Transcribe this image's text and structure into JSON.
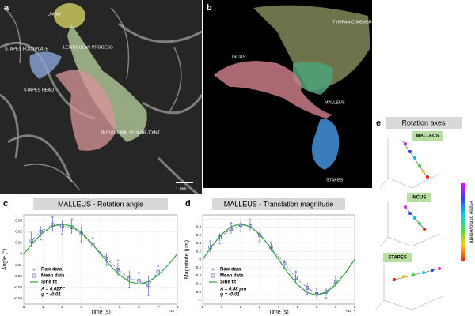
{
  "panel_a": {
    "letter": "a",
    "labels": [
      "UMBO",
      "STAPES FOOTPLATE",
      "LENTICULAR PROCESS",
      "STAPES HEAD",
      "INCUDO-MALLEOLAR JOINT"
    ],
    "scale_bar": "1 mm"
  },
  "panel_b": {
    "letter": "b",
    "labels": [
      "TYMPANIC MEMBRANE",
      "INCUS",
      "MALLEUS",
      "STAPES"
    ]
  },
  "panel_e": {
    "letter": "e",
    "title": "Rotation axes",
    "plots": [
      "MALLEUS",
      "INCUS",
      "STAPES"
    ],
    "colorbar_label": "Phase of movement"
  },
  "chart_data": [
    {
      "type": "line",
      "panel": "c",
      "title": "MALLEUS - Rotation angle",
      "x_label": "Time (s)",
      "x_exponent": "×10⁻³",
      "y_label": "Angle (°)",
      "xlim": [
        0,
        8
      ],
      "xticks": [
        0,
        1,
        2,
        3,
        4,
        5,
        6,
        7,
        8
      ],
      "ylim": [
        -0.045,
        0.035
      ],
      "yticks": [
        0.03,
        0.02,
        0.01,
        0,
        -0.01,
        -0.02,
        -0.03,
        -0.04
      ],
      "grid": true,
      "annotations": [
        "A = 0.027 °",
        "φ = -0.01"
      ],
      "series": [
        {
          "name": "Raw data",
          "color": "#8b9cf0",
          "x": [
            0.4,
            0.9,
            1.5,
            2.0,
            2.5,
            3.0,
            3.6,
            4.3,
            4.9,
            5.5,
            6.0,
            6.5,
            7.0
          ],
          "values": [
            0.019,
            0.013,
            0.033,
            0.018,
            0.031,
            0.011,
            0.014,
            -0.01,
            -0.006,
            -0.03,
            -0.017,
            -0.037,
            -0.011
          ]
        },
        {
          "name": "Mean data",
          "color": "#3b48a8",
          "x": [
            0.4,
            0.9,
            1.5,
            2.0,
            2.5,
            3.0,
            3.6,
            4.3,
            4.9,
            5.5,
            6.0,
            6.5,
            7.0
          ],
          "values": [
            0.012,
            0.02,
            0.026,
            0.025,
            0.024,
            0.018,
            0.008,
            -0.004,
            -0.014,
            -0.022,
            -0.024,
            -0.028,
            -0.016
          ],
          "errors": [
            0.006,
            0.005,
            0.006,
            0.005,
            0.006,
            0.007,
            0.005,
            0.005,
            0.006,
            0.007,
            0.006,
            0.008,
            0.004
          ]
        },
        {
          "name": "Sine fit",
          "color": "#2e9e3e",
          "x": [
            0,
            0.5,
            1,
            1.5,
            2,
            2.5,
            3,
            3.5,
            4,
            4.5,
            5,
            5.5,
            6,
            6.5,
            7,
            7.5,
            8
          ],
          "values": [
            0,
            0.0103,
            0.0191,
            0.0249,
            0.027,
            0.0249,
            0.0191,
            0.0103,
            0,
            -0.0103,
            -0.0191,
            -0.0249,
            -0.027,
            -0.0249,
            -0.0191,
            -0.0103,
            0
          ]
        }
      ]
    },
    {
      "type": "line",
      "panel": "d",
      "title": "MALLEUS - Translation magnitude",
      "x_label": "Time (s)",
      "x_exponent": "×10⁻³",
      "y_label": "Magnitude (μm)",
      "xlim": [
        0,
        8
      ],
      "xticks": [
        0,
        1,
        2,
        3,
        4,
        5,
        6,
        7,
        8
      ],
      "ylim": [
        -1.1,
        1.1
      ],
      "yticks": [
        1,
        0.8,
        0.6,
        0.4,
        0.2,
        0,
        -0.2,
        -0.4,
        -0.6,
        -0.8,
        -1
      ],
      "grid": true,
      "annotations": [
        "A = 0.88 μm",
        "φ = -0.01"
      ],
      "series": [
        {
          "name": "Raw data",
          "color": "#8b9cf0",
          "x": [
            0.4,
            0.9,
            1.5,
            2.0,
            2.5,
            3.0,
            3.6,
            4.3,
            4.9,
            5.5,
            6.0,
            6.5,
            7.0
          ],
          "values": [
            0.45,
            0.4,
            0.9,
            0.7,
            0.98,
            0.45,
            0.42,
            -0.22,
            -0.3,
            -0.85,
            -0.72,
            -0.95,
            -0.42
          ]
        },
        {
          "name": "Mean data",
          "color": "#3b48a8",
          "x": [
            0.4,
            0.9,
            1.5,
            2.0,
            2.5,
            3.0,
            3.6,
            4.3,
            4.9,
            5.5,
            6.0,
            6.5,
            7.0
          ],
          "values": [
            0.3,
            0.55,
            0.75,
            0.85,
            0.82,
            0.6,
            0.3,
            -0.1,
            -0.45,
            -0.7,
            -0.85,
            -0.8,
            -0.55
          ],
          "errors": [
            0.12,
            0.1,
            0.12,
            0.1,
            0.12,
            0.12,
            0.1,
            0.1,
            0.1,
            0.12,
            0.1,
            0.1,
            0.1
          ]
        },
        {
          "name": "Sine fit",
          "color": "#2e9e3e",
          "x": [
            0,
            0.5,
            1,
            1.5,
            2,
            2.5,
            3,
            3.5,
            4,
            4.5,
            5,
            5.5,
            6,
            6.5,
            7,
            7.5,
            8
          ],
          "values": [
            0,
            0.337,
            0.622,
            0.813,
            0.88,
            0.813,
            0.622,
            0.337,
            0,
            -0.337,
            -0.622,
            -0.813,
            -0.88,
            -0.813,
            -0.622,
            -0.337,
            0
          ]
        }
      ]
    }
  ]
}
